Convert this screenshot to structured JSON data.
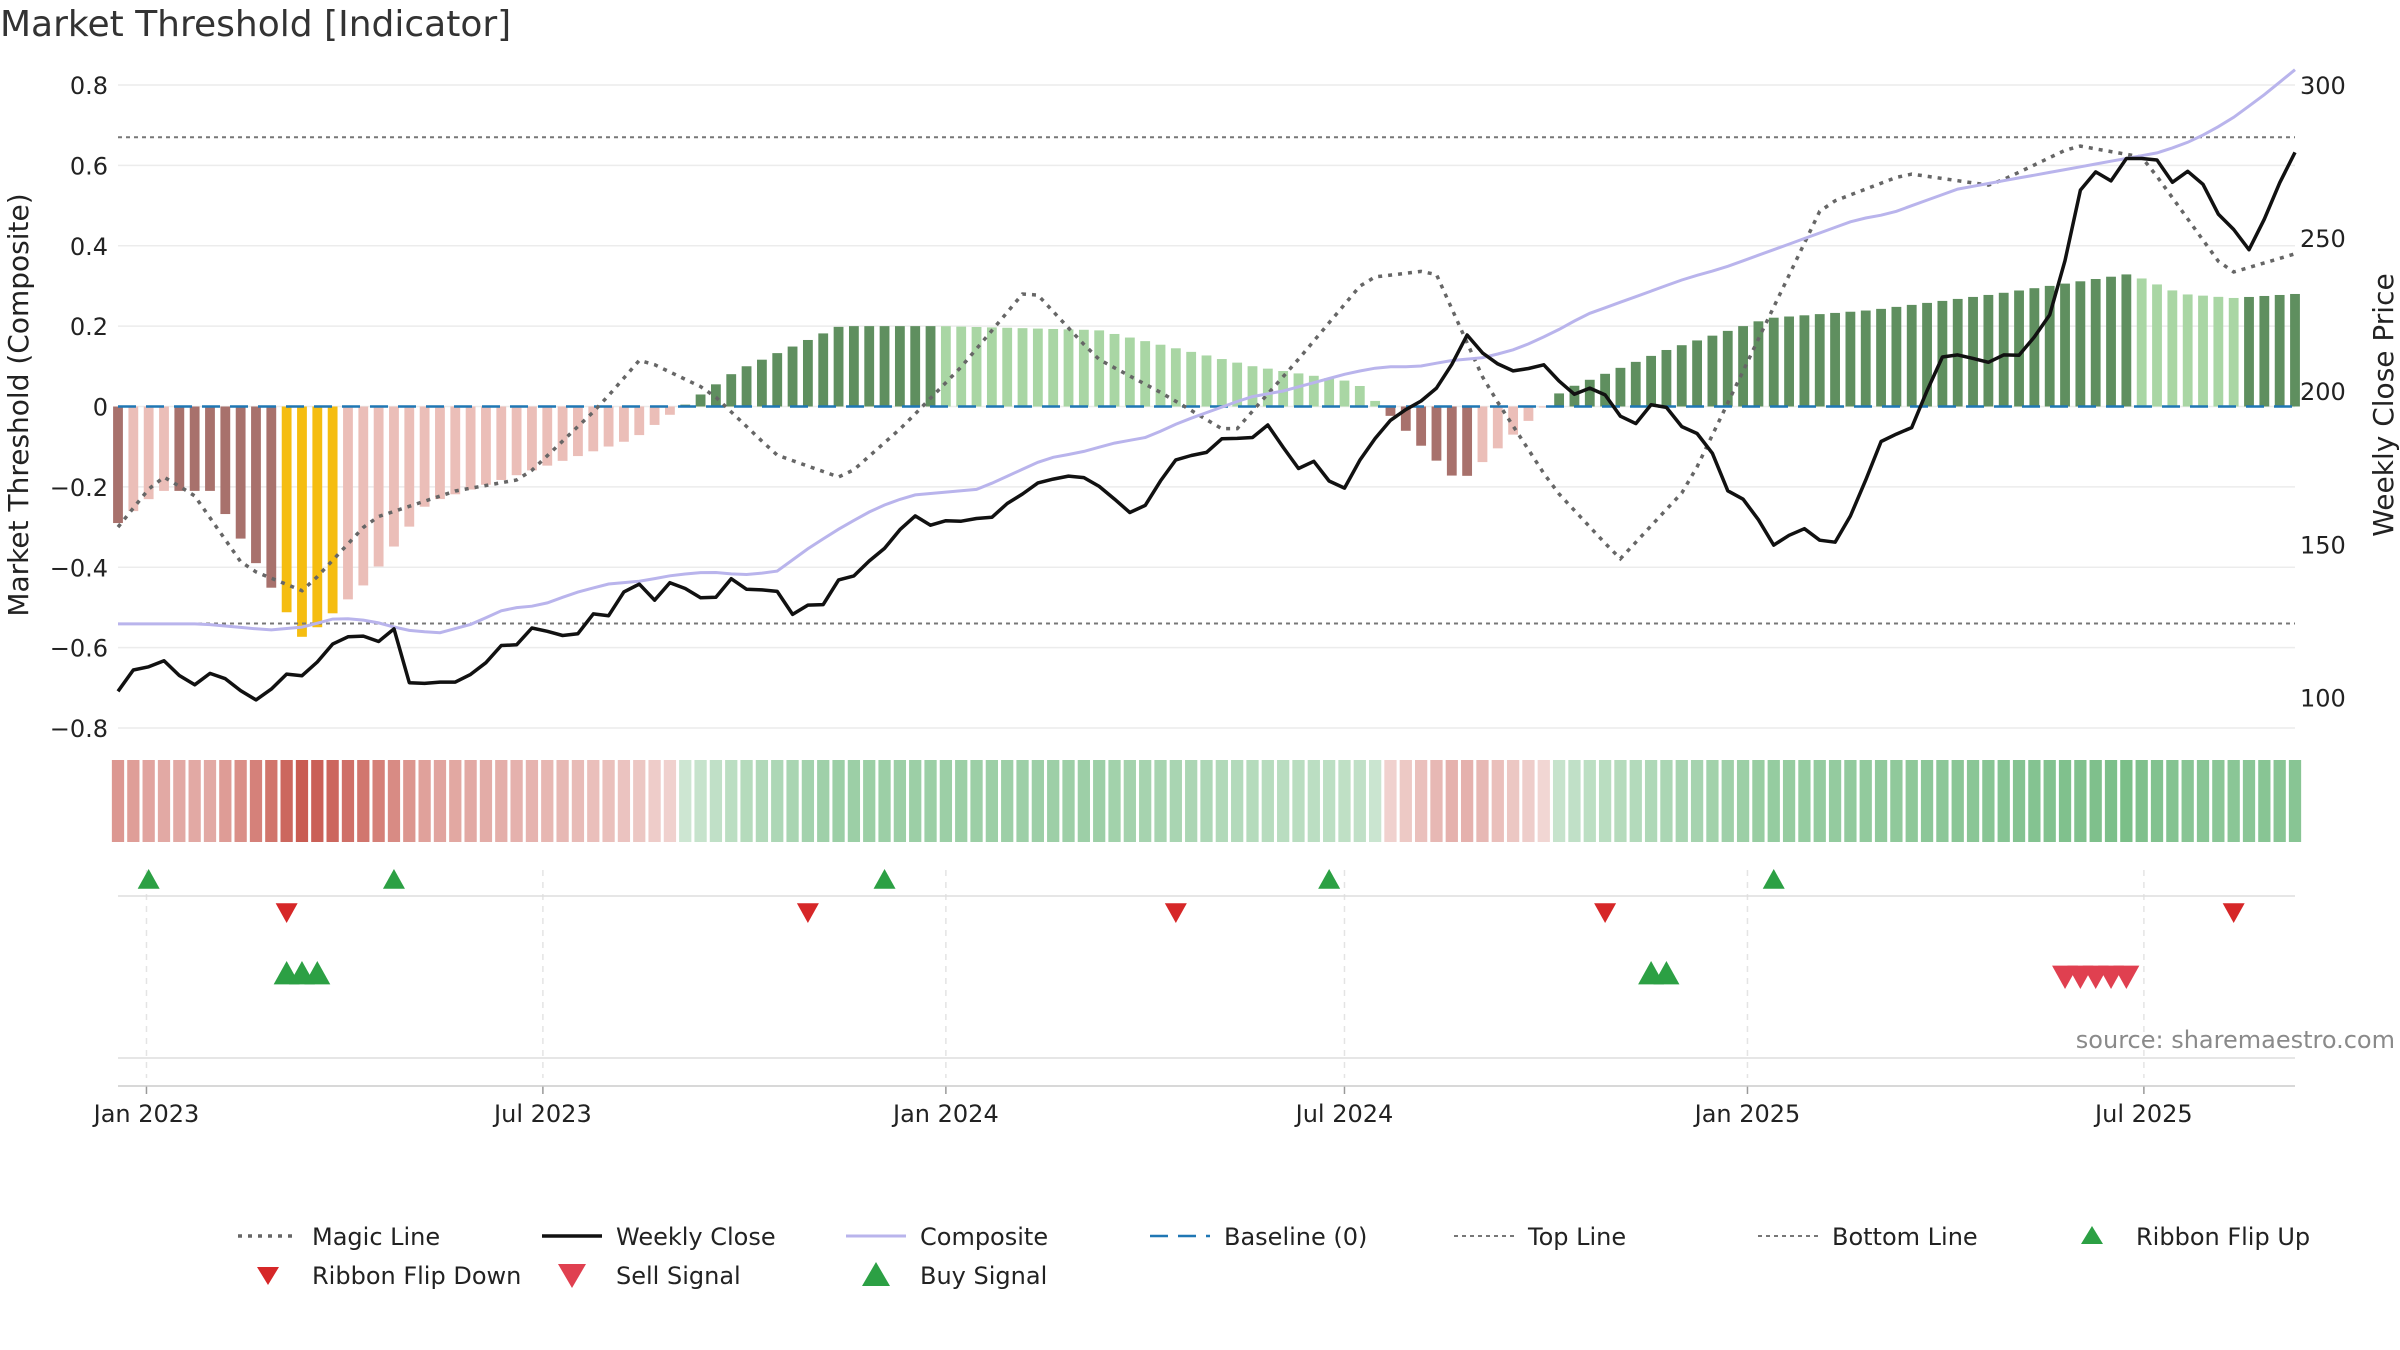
{
  "title": "Market Threshold [Indicator]",
  "source": "source: sharemaestro.com",
  "chart_data": {
    "type": "bar",
    "title": "Market Threshold [Indicator]",
    "ylabel": "Market Threshold (Composite)",
    "y2label": "Weekly Close Price",
    "ylim": [
      -0.8,
      0.8
    ],
    "y2lim": [
      90,
      300
    ],
    "yticks": [
      -0.8,
      -0.6,
      -0.4,
      -0.2,
      0,
      0.2,
      0.4,
      0.6,
      0.8
    ],
    "ytick_labels": [
      "−0.8",
      "−0.6",
      "−0.4",
      "−0.2",
      "0",
      "0.2",
      "0.4",
      "0.6",
      "0.8"
    ],
    "y2ticks": [
      100,
      150,
      200,
      250,
      300
    ],
    "y2tick_labels": [
      "100",
      "150",
      "200",
      "250",
      "300"
    ],
    "x_start": "2022-12-19",
    "x_end": "2025-09-08",
    "xticks": [
      "2023-01-01",
      "2023-07-01",
      "2024-01-01",
      "2024-07-01",
      "2025-01-01",
      "2025-07-01"
    ],
    "xtick_labels": [
      "Jan 2023",
      "Jul 2023",
      "Jan 2024",
      "Jul 2024",
      "Jan 2025",
      "Jul 2025"
    ],
    "top_line": 0.67,
    "bottom_line": -0.54,
    "grid": true,
    "legend_position": "bottom",
    "bar_colors": {
      "strong_up": "#5f8f5f",
      "weak_up": "#a9d6a4",
      "strong_down": "#a8716c",
      "weak_down": "#ebbeb8",
      "extreme": "#f5bd10"
    },
    "composite_keypoints": [
      [
        0,
        -0.29
      ],
      [
        4,
        -0.21
      ],
      [
        9,
        -0.21
      ],
      [
        18,
        -0.58
      ],
      [
        24,
        -0.44
      ],
      [
        30,
        -0.24
      ],
      [
        40,
        -0.16
      ],
      [
        50,
        -0.08
      ],
      [
        60,
        0.09
      ],
      [
        70,
        0.2
      ],
      [
        80,
        0.2
      ],
      [
        95,
        0.19
      ],
      [
        110,
        0.1
      ],
      [
        120,
        0.06
      ],
      [
        130,
        -0.19
      ],
      [
        140,
        0.04
      ],
      [
        150,
        0.14
      ],
      [
        160,
        0.22
      ],
      [
        170,
        0.24
      ],
      [
        182,
        0.28
      ],
      [
        195,
        0.33
      ],
      [
        200,
        0.28
      ],
      [
        205,
        0.27
      ],
      [
        211,
        0.28
      ]
    ],
    "magic_keypoints": [
      [
        0,
        -0.3
      ],
      [
        5,
        -0.17
      ],
      [
        9,
        -0.22
      ],
      [
        15,
        -0.4
      ],
      [
        22,
        -0.46
      ],
      [
        30,
        -0.28
      ],
      [
        40,
        -0.21
      ],
      [
        48,
        -0.18
      ],
      [
        57,
        0.0
      ],
      [
        62,
        0.12
      ],
      [
        70,
        0.04
      ],
      [
        78,
        -0.12
      ],
      [
        86,
        -0.18
      ],
      [
        93,
        -0.05
      ],
      [
        100,
        0.1
      ],
      [
        108,
        0.3
      ],
      [
        116,
        0.12
      ],
      [
        124,
        0.03
      ],
      [
        132,
        -0.07
      ],
      [
        140,
        0.12
      ],
      [
        148,
        0.32
      ],
      [
        156,
        0.34
      ],
      [
        162,
        0.06
      ],
      [
        170,
        -0.2
      ],
      [
        178,
        -0.38
      ],
      [
        186,
        -0.2
      ],
      [
        194,
        0.15
      ],
      [
        202,
        0.5
      ],
      [
        212,
        0.58
      ],
      [
        222,
        0.55
      ],
      [
        232,
        0.65
      ],
      [
        240,
        0.62
      ],
      [
        250,
        0.33
      ],
      [
        258,
        0.38
      ]
    ],
    "weekly_close_keypoints": [
      [
        0,
        101
      ],
      [
        2,
        109
      ],
      [
        5,
        114
      ],
      [
        8,
        107
      ],
      [
        13,
        98
      ],
      [
        16,
        105
      ],
      [
        20,
        118
      ],
      [
        25,
        118
      ],
      [
        28,
        101
      ],
      [
        31,
        104
      ],
      [
        34,
        106
      ],
      [
        40,
        116
      ],
      [
        45,
        122
      ],
      [
        49,
        121
      ],
      [
        52,
        128
      ],
      [
        56,
        136
      ],
      [
        60,
        140
      ],
      [
        66,
        144
      ],
      [
        70,
        140
      ],
      [
        76,
        136
      ],
      [
        82,
        150
      ],
      [
        86,
        160
      ],
      [
        90,
        165
      ],
      [
        96,
        172
      ],
      [
        100,
        178
      ],
      [
        104,
        170
      ],
      [
        108,
        193
      ],
      [
        112,
        192
      ],
      [
        116,
        182
      ],
      [
        120,
        168
      ],
      [
        124,
        176
      ],
      [
        128,
        192
      ],
      [
        132,
        218
      ],
      [
        140,
        205
      ],
      [
        144,
        210
      ],
      [
        148,
        200
      ],
      [
        152,
        190
      ],
      [
        156,
        160
      ],
      [
        160,
        145
      ],
      [
        164,
        162
      ],
      [
        168,
        182
      ],
      [
        174,
        198
      ],
      [
        178,
        202
      ],
      [
        182,
        218
      ],
      [
        186,
        226
      ],
      [
        190,
        228
      ],
      [
        194,
        235
      ],
      [
        198,
        240
      ],
      [
        202,
        238
      ],
      [
        206,
        248
      ],
      [
        210,
        256
      ],
      [
        214,
        264
      ],
      [
        218,
        272
      ],
      [
        222,
        280
      ],
      [
        226,
        276
      ],
      [
        230,
        272
      ],
      [
        234,
        260
      ],
      [
        238,
        248
      ],
      [
        242,
        242
      ],
      [
        246,
        236
      ],
      [
        250,
        244
      ],
      [
        254,
        262
      ],
      [
        256,
        276
      ],
      [
        258,
        290
      ]
    ],
    "weekly_close_path": [
      [
        0,
        102
      ],
      [
        1,
        109
      ],
      [
        2,
        110
      ],
      [
        3,
        112
      ],
      [
        4,
        107
      ],
      [
        5,
        104
      ],
      [
        6,
        108
      ],
      [
        7,
        106
      ],
      [
        8,
        102
      ],
      [
        9,
        99
      ],
      [
        10,
        103
      ],
      [
        11,
        108
      ],
      [
        12,
        107
      ],
      [
        13,
        112
      ],
      [
        14,
        118
      ],
      [
        15,
        120
      ],
      [
        16,
        120
      ],
      [
        17,
        118
      ],
      [
        18,
        123
      ],
      [
        19,
        102
      ],
      [
        20,
        105
      ],
      [
        21,
        105
      ],
      [
        22,
        105
      ],
      [
        23,
        108
      ],
      [
        24,
        112
      ],
      [
        25,
        118
      ],
      [
        26,
        117
      ],
      [
        27,
        124
      ],
      [
        28,
        121
      ],
      [
        29,
        120
      ],
      [
        30,
        121
      ],
      [
        31,
        129
      ],
      [
        32,
        126
      ],
      [
        33,
        137
      ],
      [
        34,
        137
      ],
      [
        35,
        130
      ],
      [
        36,
        140
      ],
      [
        37,
        134
      ],
      [
        38,
        132
      ],
      [
        39,
        133
      ],
      [
        40,
        141
      ],
      [
        41,
        133
      ],
      [
        42,
        136
      ],
      [
        43,
        134
      ],
      [
        44,
        124
      ],
      [
        45,
        133
      ],
      [
        46,
        129
      ],
      [
        47,
        143
      ],
      [
        48,
        138
      ],
      [
        49,
        148
      ],
      [
        50,
        149
      ],
      [
        51,
        158
      ],
      [
        52,
        160
      ],
      [
        53,
        154
      ],
      [
        54,
        160
      ],
      [
        55,
        156
      ],
      [
        56,
        160
      ],
      [
        57,
        158
      ],
      [
        58,
        167
      ],
      [
        59,
        166
      ],
      [
        60,
        173
      ],
      [
        61,
        170
      ],
      [
        62,
        174
      ],
      [
        63,
        170
      ],
      [
        64,
        168
      ],
      [
        65,
        162
      ],
      [
        66,
        159
      ],
      [
        67,
        166
      ],
      [
        68,
        175
      ],
      [
        69,
        180
      ],
      [
        70,
        178
      ],
      [
        71,
        182
      ],
      [
        72,
        187
      ],
      [
        73,
        182
      ],
      [
        74,
        188
      ],
      [
        75,
        190
      ],
      [
        76,
        172
      ],
      [
        77,
        178
      ],
      [
        78,
        176
      ],
      [
        79,
        164
      ],
      [
        80,
        174
      ],
      [
        81,
        182
      ],
      [
        82,
        188
      ],
      [
        83,
        194
      ],
      [
        84,
        194
      ],
      [
        85,
        201
      ],
      [
        86,
        201
      ],
      [
        87,
        221
      ],
      [
        88,
        214
      ],
      [
        89,
        210
      ],
      [
        90,
        207
      ],
      [
        91,
        206
      ],
      [
        92,
        210
      ],
      [
        93,
        206
      ],
      [
        94,
        198
      ],
      [
        95,
        201
      ],
      [
        96,
        201
      ],
      [
        97,
        194
      ],
      [
        98,
        187
      ],
      [
        99,
        195
      ],
      [
        100,
        197
      ],
      [
        101,
        189
      ],
      [
        102,
        187
      ],
      [
        103,
        184
      ],
      [
        104,
        168
      ],
      [
        105,
        166
      ],
      [
        106,
        161
      ],
      [
        107,
        149
      ],
      [
        108,
        152
      ],
      [
        109,
        156
      ],
      [
        110,
        152
      ],
      [
        111,
        149
      ],
      [
        112,
        157
      ],
      [
        113,
        168
      ],
      [
        114,
        183
      ],
      [
        115,
        186
      ],
      [
        116,
        186
      ],
      [
        117,
        198
      ],
      [
        118,
        211
      ],
      [
        119,
        212
      ],
      [
        120,
        211
      ],
      [
        121,
        209
      ],
      [
        122,
        212
      ],
      [
        123,
        211
      ],
      [
        124,
        217
      ],
      [
        125,
        223
      ],
      [
        126,
        240
      ],
      [
        127,
        265
      ],
      [
        128,
        272
      ],
      [
        129,
        268
      ],
      [
        130,
        276
      ],
      [
        131,
        276
      ],
      [
        132,
        276
      ],
      [
        133,
        268
      ],
      [
        134,
        272
      ],
      [
        135,
        268
      ],
      [
        136,
        258
      ],
      [
        137,
        253
      ],
      [
        138,
        246
      ],
      [
        139,
        256
      ],
      [
        140,
        268
      ],
      [
        141,
        278
      ]
    ],
    "composite_path": [
      [
        0,
        124
      ],
      [
        10,
        124
      ],
      [
        14,
        123
      ],
      [
        18,
        122
      ],
      [
        22,
        123
      ],
      [
        26,
        126
      ],
      [
        30,
        125
      ],
      [
        34,
        122
      ],
      [
        38,
        121
      ],
      [
        42,
        124
      ],
      [
        46,
        129
      ],
      [
        50,
        130
      ],
      [
        54,
        134
      ],
      [
        58,
        137
      ],
      [
        62,
        138
      ],
      [
        66,
        140
      ],
      [
        70,
        141
      ],
      [
        74,
        140
      ],
      [
        78,
        141
      ],
      [
        82,
        149
      ],
      [
        86,
        156
      ],
      [
        90,
        162
      ],
      [
        94,
        166
      ],
      [
        98,
        167
      ],
      [
        102,
        168
      ],
      [
        106,
        173
      ],
      [
        110,
        178
      ],
      [
        114,
        180
      ],
      [
        118,
        183
      ],
      [
        122,
        185
      ],
      [
        126,
        190
      ],
      [
        130,
        194
      ],
      [
        134,
        198
      ],
      [
        138,
        200
      ],
      [
        142,
        203
      ],
      [
        146,
        206
      ],
      [
        150,
        208
      ],
      [
        154,
        208
      ],
      [
        158,
        210
      ],
      [
        162,
        211
      ],
      [
        166,
        214
      ],
      [
        170,
        219
      ],
      [
        174,
        225
      ],
      [
        178,
        229
      ],
      [
        182,
        233
      ],
      [
        186,
        237
      ],
      [
        190,
        240
      ],
      [
        194,
        244
      ],
      [
        198,
        248
      ],
      [
        202,
        252
      ],
      [
        206,
        256
      ],
      [
        210,
        258
      ],
      [
        214,
        262
      ],
      [
        218,
        266
      ],
      [
        222,
        268
      ],
      [
        226,
        270
      ],
      [
        230,
        272
      ],
      [
        234,
        274
      ],
      [
        238,
        276
      ],
      [
        242,
        278
      ],
      [
        246,
        282
      ],
      [
        250,
        288
      ],
      [
        254,
        296
      ],
      [
        258,
        305
      ]
    ],
    "legend": [
      "Magic Line",
      "Weekly Close",
      "Composite",
      "Baseline (0)",
      "Top Line",
      "Bottom Line",
      "Ribbon Flip Up",
      "Ribbon Flip Down",
      "Sell Signal",
      "Buy Signal"
    ],
    "ribbon_flip_up_dates": [
      "2023-01-02",
      "2023-04-24",
      "2023-12-04",
      "2024-06-24",
      "2025-01-13"
    ],
    "ribbon_flip_down_dates": [
      "2023-03-06",
      "2023-10-30",
      "2024-04-15",
      "2024-10-28",
      "2025-08-11"
    ],
    "buy_signal_dates": [
      "2023-03-06",
      "2023-03-13",
      "2023-03-20",
      "2024-11-18",
      "2024-11-25"
    ],
    "sell_signal_dates": [
      "2025-05-26",
      "2025-06-02",
      "2025-06-09",
      "2025-06-16",
      "2025-06-23"
    ]
  },
  "colors": {
    "magic_line": "#666666",
    "weekly_close": "#111111",
    "composite": "#b9b4ec",
    "baseline": "#1f77b4",
    "threshold_lines": "#777777",
    "buy_up": "#2ca044",
    "sell_down": "#d62728",
    "sell_signal": "#e04050"
  }
}
